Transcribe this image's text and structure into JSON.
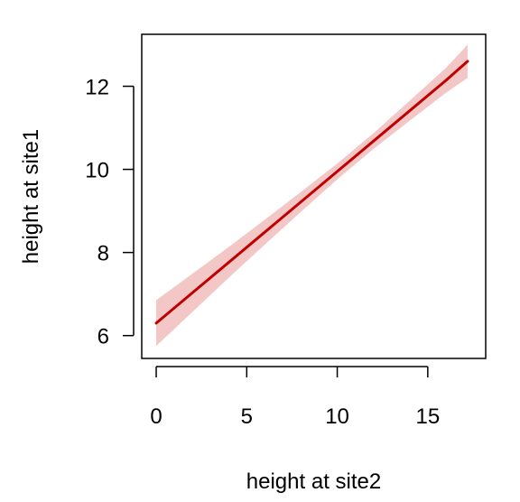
{
  "chart_data": {
    "type": "line",
    "title": "",
    "xlabel": "height at site2",
    "ylabel": "height at site1",
    "xlim": [
      -0.8,
      18.2
    ],
    "ylim": [
      5.45,
      13.25
    ],
    "x_ticks": [
      0,
      5,
      10,
      15
    ],
    "x_tick_labels": [
      "0",
      "5",
      "10",
      "15"
    ],
    "y_ticks": [
      6,
      8,
      10,
      12
    ],
    "y_tick_labels": [
      "6",
      "8",
      "10",
      "12"
    ],
    "grid": false,
    "legend": "none",
    "series": [
      {
        "x": [
          0,
          2,
          4,
          6,
          8,
          10,
          12,
          14,
          16,
          17.2
        ],
        "y": [
          6.3,
          7.03,
          7.76,
          8.49,
          9.22,
          9.95,
          10.68,
          11.41,
          12.14,
          12.6
        ],
        "lower": [
          5.75,
          6.57,
          7.39,
          8.19,
          8.98,
          9.76,
          10.49,
          11.17,
          11.84,
          12.2
        ],
        "upper": [
          6.85,
          7.49,
          8.13,
          8.79,
          9.46,
          10.14,
          10.87,
          11.65,
          12.44,
          13.0
        ]
      }
    ],
    "colors": {
      "line": "#c00000",
      "band": "#f4c7c7",
      "axis": "#000000"
    }
  }
}
